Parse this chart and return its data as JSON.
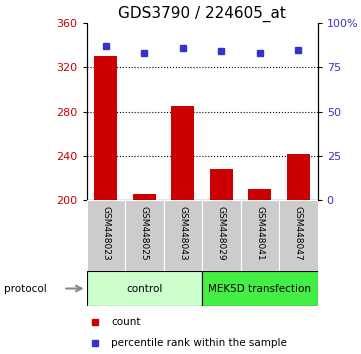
{
  "title": "GDS3790 / 224605_at",
  "samples": [
    "GSM448023",
    "GSM448025",
    "GSM448043",
    "GSM448029",
    "GSM448041",
    "GSM448047"
  ],
  "counts": [
    330,
    205,
    285,
    228,
    210,
    242
  ],
  "percentile_ranks": [
    87,
    83,
    86,
    84,
    83,
    85
  ],
  "ylim_left": [
    200,
    360
  ],
  "ylim_right": [
    0,
    100
  ],
  "yticks_left": [
    200,
    240,
    280,
    320,
    360
  ],
  "yticks_right": [
    0,
    25,
    50,
    75,
    100
  ],
  "bar_color": "#cc0000",
  "marker_color": "#3333cc",
  "bar_width": 0.6,
  "groups": [
    {
      "label": "control",
      "indices": [
        0,
        1,
        2
      ],
      "color": "#ccffcc"
    },
    {
      "label": "MEK5D transfection",
      "indices": [
        3,
        4,
        5
      ],
      "color": "#44ee44"
    }
  ],
  "protocol_label": "protocol",
  "legend_count_label": "count",
  "legend_percentile_label": "percentile rank within the sample",
  "tick_label_color_left": "#cc0000",
  "tick_label_color_right": "#3333cc",
  "xlabel_area_color": "#cccccc",
  "title_fontsize": 11,
  "axis_fontsize": 8,
  "sample_label_fontsize": 6.5
}
